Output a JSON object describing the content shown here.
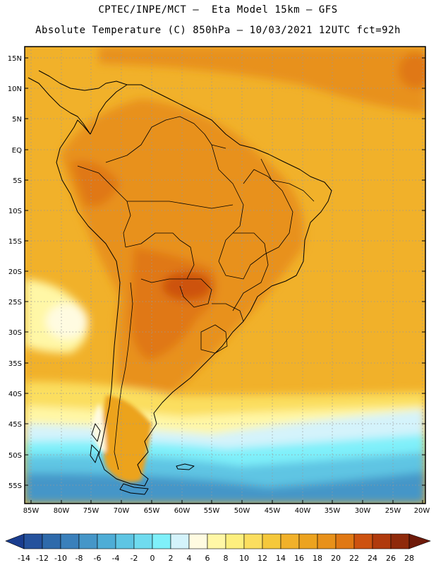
{
  "header": {
    "line1": "CPTEC/INPE/MCT –  Eta Model 15km – GFS",
    "line2": "Absolute Temperature (C) 850hPa – 10/03/2021 12UTC fct=92h"
  },
  "map": {
    "lat_labels": [
      "15N",
      "10N",
      "5N",
      "EQ",
      "5S",
      "10S",
      "15S",
      "20S",
      "25S",
      "30S",
      "35S",
      "40S",
      "45S",
      "50S",
      "55S"
    ],
    "lon_labels": [
      "85W",
      "80W",
      "75W",
      "70W",
      "65W",
      "60W",
      "55W",
      "50W",
      "45W",
      "40W",
      "35W",
      "30W",
      "25W",
      "20W"
    ],
    "regions": {
      "deep_south_water": "-6",
      "south_ocean": "0",
      "cool_band": "6",
      "ocean_warm": "16",
      "continent_interior": "20",
      "hot_core": "22",
      "hottest": "24"
    }
  },
  "colorbar": {
    "labels": [
      "-14",
      "-12",
      "-10",
      "-8",
      "-6",
      "-4",
      "-2",
      "0",
      "2",
      "4",
      "6",
      "8",
      "10",
      "12",
      "14",
      "16",
      "18",
      "20",
      "22",
      "24",
      "26",
      "28"
    ],
    "colors": [
      "#1a3d8f",
      "#25529d",
      "#2e6aab",
      "#3a80bb",
      "#4596c8",
      "#4eadd6",
      "#5ec5e3",
      "#6fdbef",
      "#7ff0fa",
      "#d4f3fb",
      "#fffbe1",
      "#fff7a6",
      "#fdef7e",
      "#fbde5f",
      "#f5c83b",
      "#f1b12a",
      "#eca31f",
      "#e8911a",
      "#e07814",
      "#cd5210",
      "#b03a0d",
      "#8f2a0b",
      "#6e1a09"
    ]
  }
}
